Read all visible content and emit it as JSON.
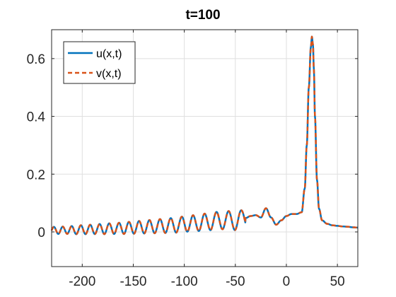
{
  "chart_data": {
    "type": "line",
    "title": "t=100",
    "xlabel": "",
    "ylabel": "",
    "xlim": [
      -230,
      70
    ],
    "ylim": [
      -0.12,
      0.7
    ],
    "xticks": [
      -200,
      -150,
      -100,
      -50,
      0,
      50
    ],
    "yticks": [
      0,
      0.2,
      0.4,
      0.6
    ],
    "xtick_labels": [
      "-200",
      "-150",
      "-100",
      "-50",
      "0",
      "50"
    ],
    "ytick_labels": [
      "0",
      "0.2",
      "0.4",
      "0.6"
    ],
    "grid": true,
    "legend_position": "top-left",
    "series": [
      {
        "name": "u(x,t)",
        "color": "#0072BD",
        "style": "solid",
        "x": [
          -230,
          -225,
          -220,
          -215,
          -210,
          -205,
          -200,
          -195,
          -190,
          -185,
          -180,
          -175,
          -170,
          -165,
          -160,
          -155,
          -150,
          -145,
          -140,
          -135,
          -130,
          -125,
          -120,
          -115,
          -110,
          -105,
          -100,
          -95,
          -90,
          -85,
          -80,
          -75,
          -70,
          -65,
          -60,
          -55,
          -50,
          -45,
          -40,
          -35,
          -30,
          -25,
          -20,
          -15,
          -10,
          -5,
          0,
          5,
          10,
          15,
          18,
          20,
          22,
          24,
          25,
          26,
          27,
          28,
          30,
          32,
          35,
          40,
          45,
          50,
          55,
          60,
          65,
          70
        ],
        "y": [
          0.005,
          0.006,
          0.005,
          0.007,
          0.006,
          0.007,
          0.008,
          0.008,
          0.009,
          0.01,
          0.01,
          0.011,
          0.012,
          0.012,
          0.013,
          0.014,
          0.015,
          0.016,
          0.017,
          0.018,
          0.019,
          0.02,
          0.021,
          0.022,
          0.023,
          0.025,
          0.027,
          0.029,
          0.03,
          0.032,
          0.034,
          0.036,
          0.038,
          0.04,
          0.041,
          0.04,
          0.039,
          0.041,
          0.048,
          0.055,
          0.058,
          0.05,
          0.082,
          0.05,
          0.025,
          0.04,
          0.055,
          0.062,
          0.062,
          0.068,
          0.15,
          0.3,
          0.5,
          0.64,
          0.676,
          0.65,
          0.56,
          0.4,
          0.18,
          0.08,
          0.04,
          0.028,
          0.023,
          0.021,
          0.019,
          0.018,
          0.016,
          0.015
        ]
      },
      {
        "name": "v(x,t)",
        "color": "#D95319",
        "style": "dashed",
        "x": [
          -230,
          -225,
          -220,
          -215,
          -210,
          -205,
          -200,
          -195,
          -190,
          -185,
          -180,
          -175,
          -170,
          -165,
          -160,
          -155,
          -150,
          -145,
          -140,
          -135,
          -130,
          -125,
          -120,
          -115,
          -110,
          -105,
          -100,
          -95,
          -90,
          -85,
          -80,
          -75,
          -70,
          -65,
          -60,
          -55,
          -50,
          -45,
          -40,
          -35,
          -30,
          -25,
          -20,
          -15,
          -10,
          -5,
          0,
          5,
          10,
          15,
          18,
          20,
          22,
          24,
          25,
          26,
          27,
          28,
          30,
          32,
          35,
          40,
          45,
          50,
          55,
          60,
          65,
          70
        ],
        "y": [
          0.005,
          0.006,
          0.005,
          0.007,
          0.006,
          0.007,
          0.008,
          0.008,
          0.009,
          0.01,
          0.01,
          0.011,
          0.012,
          0.012,
          0.013,
          0.014,
          0.015,
          0.016,
          0.017,
          0.018,
          0.019,
          0.02,
          0.021,
          0.022,
          0.023,
          0.025,
          0.027,
          0.029,
          0.03,
          0.032,
          0.034,
          0.036,
          0.038,
          0.04,
          0.041,
          0.04,
          0.039,
          0.041,
          0.048,
          0.055,
          0.058,
          0.05,
          0.082,
          0.05,
          0.025,
          0.04,
          0.055,
          0.062,
          0.062,
          0.068,
          0.15,
          0.3,
          0.5,
          0.64,
          0.676,
          0.65,
          0.56,
          0.4,
          0.18,
          0.08,
          0.04,
          0.028,
          0.023,
          0.021,
          0.019,
          0.018,
          0.016,
          0.015
        ]
      }
    ]
  }
}
